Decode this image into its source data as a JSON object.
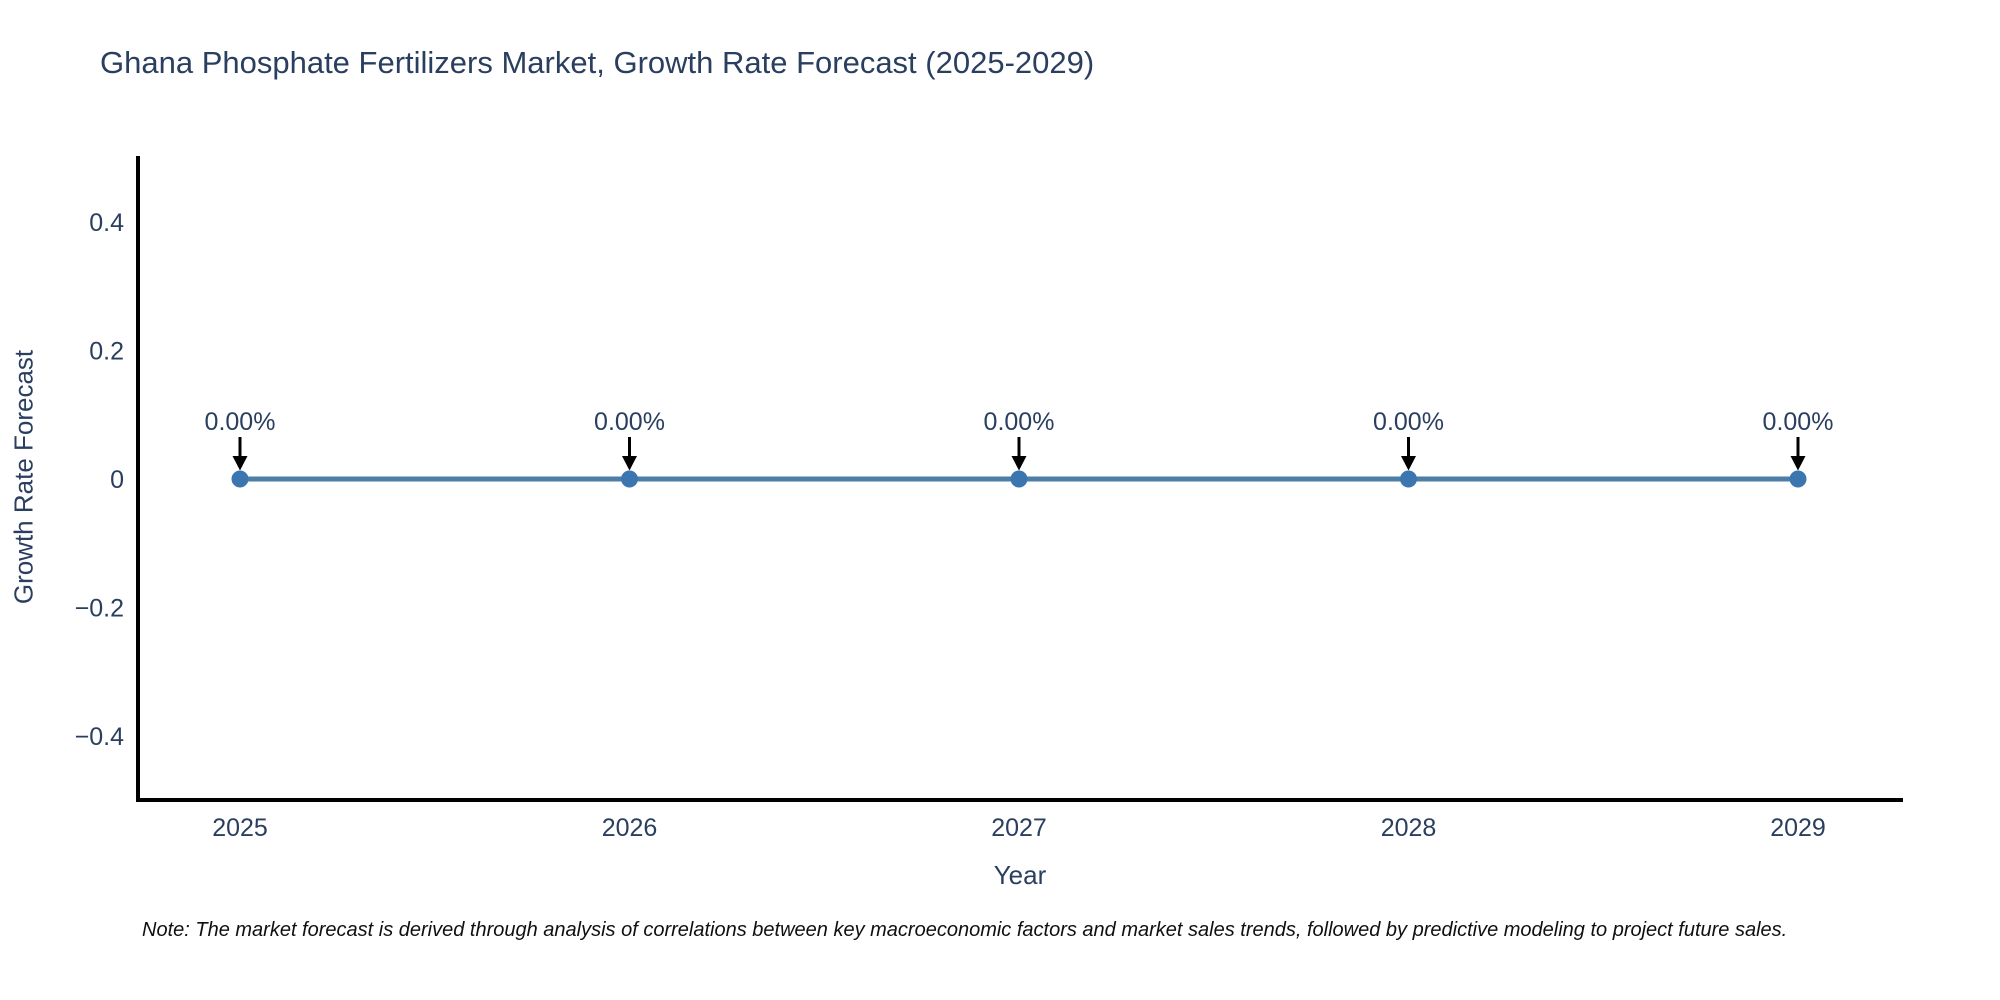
{
  "note": "Note: The market forecast is derived through analysis of correlations between key macroeconomic factors and market sales trends, followed by predictive modeling to project future sales.",
  "chart_data": {
    "type": "line",
    "title": "Ghana Phosphate Fertilizers Market, Growth Rate Forecast (2025-2029)",
    "xlabel": "Year",
    "ylabel": "Growth Rate Forecast",
    "x": [
      "2025",
      "2026",
      "2027",
      "2028",
      "2029"
    ],
    "series": [
      {
        "name": "Growth Rate Forecast",
        "values": [
          0,
          0,
          0,
          0,
          0
        ]
      }
    ],
    "point_labels": [
      "0.00%",
      "0.00%",
      "0.00%",
      "0.00%",
      "0.00%"
    ],
    "annotation_style": "arrow-down",
    "ytick_values": [
      0.4,
      0.2,
      0,
      -0.2,
      -0.4
    ],
    "ytick_labels": [
      "0.4",
      "0.2",
      "0",
      "−0.2",
      "−0.4"
    ],
    "ylim": [
      -0.5,
      0.5
    ],
    "grid": false,
    "legend_position": "none",
    "colors": {
      "line": "#4d7ea8",
      "marker": "#3b76b0",
      "arrow": "#000000",
      "axis": "#000000",
      "text": "#2a3f5f",
      "note_text": "#101010",
      "background": "#ffffff"
    }
  }
}
